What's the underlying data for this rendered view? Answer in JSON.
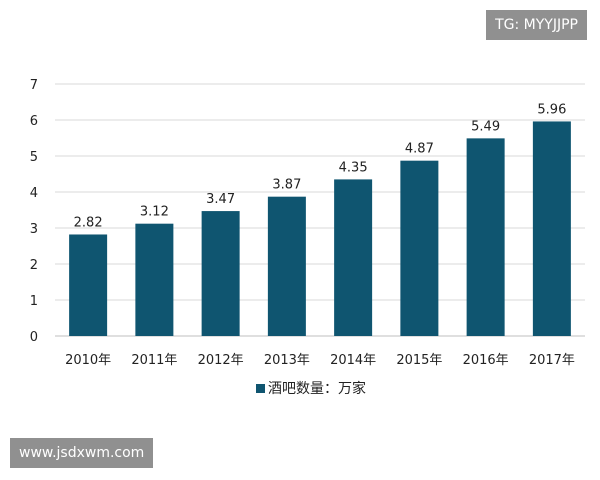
{
  "colors": {
    "bar": "#0f5570",
    "grid": "#d9d9d9",
    "axis": "#bfbfbf",
    "text": "#222222"
  },
  "watermarks": {
    "top": "TG: MYYJJPP",
    "bottom": "www.jsdxwm.com"
  },
  "chart_data": {
    "type": "bar",
    "title": "",
    "xlabel": "",
    "ylabel": "",
    "categories": [
      "2010年",
      "2011年",
      "2012年",
      "2013年",
      "2014年",
      "2015年",
      "2016年",
      "2017年"
    ],
    "series": [
      {
        "name": "酒吧数量：万家",
        "values": [
          2.82,
          3.12,
          3.47,
          3.87,
          4.35,
          4.87,
          5.49,
          5.96
        ]
      }
    ],
    "value_labels": [
      "2.82",
      "3.12",
      "3.47",
      "3.87",
      "4.35",
      "4.87",
      "5.49",
      "5.96"
    ],
    "y_ticks": [
      "0",
      "1",
      "2",
      "3",
      "4",
      "5",
      "6",
      "7"
    ],
    "ylim": [
      0,
      7
    ],
    "grid": true,
    "legend": {
      "position": "bottom",
      "label": "酒吧数量：万家"
    }
  }
}
